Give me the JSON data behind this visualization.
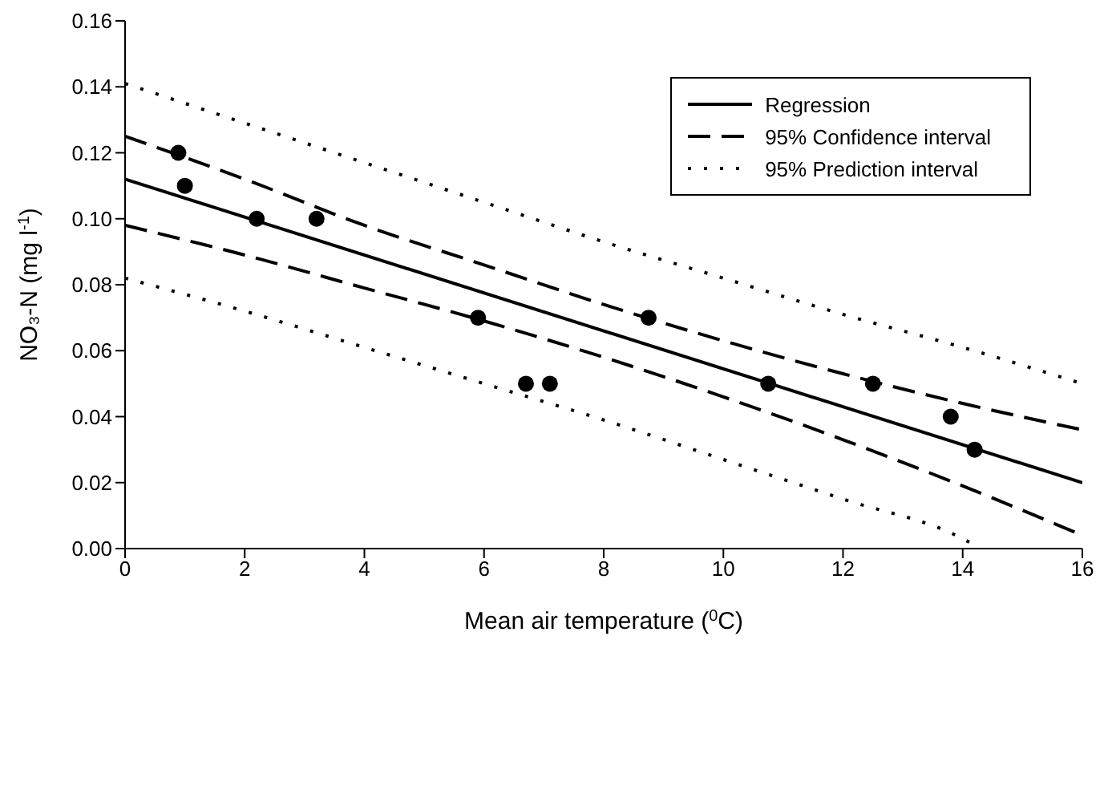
{
  "chart_data": {
    "type": "line",
    "xlabel": "Mean air temperature ($^{0}$C)",
    "ylabel": "NO₃-N (mg l$^{-1}$)",
    "xlim": [
      0,
      16
    ],
    "xticks": [
      0,
      2,
      4,
      6,
      8,
      10,
      12,
      14,
      16
    ],
    "ylim": [
      0,
      0.16
    ],
    "yticks": [
      {
        "value": 0,
        "label": "0.00"
      },
      {
        "value": 0.02,
        "label": "0.02"
      },
      {
        "value": 0.04,
        "label": "0.04"
      },
      {
        "value": 0.06,
        "label": "0.06"
      },
      {
        "value": 0.08,
        "label": "0.08"
      },
      {
        "value": 0.1,
        "label": "0.10"
      },
      {
        "value": 0.12,
        "label": "0.12"
      },
      {
        "value": 0.14,
        "label": "0.14"
      },
      {
        "value": 0.16,
        "label": "0.16"
      }
    ],
    "grid": false,
    "legend": "top right",
    "series": [
      {
        "type": "scatter",
        "color": "#000000",
        "marker": "circle",
        "x": [
          0.89,
          1.0,
          2.2,
          3.2,
          5.9,
          6.7,
          7.1,
          8.75,
          10.75,
          12.5,
          13.8,
          14.2
        ],
        "values": [
          0.12,
          0.11,
          0.1,
          0.1,
          0.07,
          0.05,
          0.05,
          0.07,
          0.05,
          0.05,
          0.04,
          0.03
        ]
      },
      {
        "name": "Regression",
        "color": "#000000",
        "line_style": "solid",
        "x": [
          0,
          16
        ],
        "values": [
          0.112,
          0.02
        ]
      },
      {
        "name": "95% Confidence interval",
        "color": "#000000",
        "line_style": "dashed",
        "x": [
          0,
          2,
          4,
          6,
          8,
          10,
          12,
          14,
          16
        ],
        "values": [
          0.125,
          0.112,
          0.098,
          0.086,
          0.074,
          0.063,
          0.053,
          0.044,
          0.036
        ]
      },
      {
        "color": "#000000",
        "line_style": "dashed",
        "x": [
          0,
          2,
          4,
          6,
          8,
          10,
          12,
          14,
          16
        ],
        "values": [
          0.098,
          0.089,
          0.079,
          0.069,
          0.058,
          0.046,
          0.033,
          0.019,
          0.004
        ]
      },
      {
        "name": "95% Prediction interval",
        "color": "#000000",
        "line_style": "dotted",
        "x": [
          0,
          2,
          4,
          6,
          8,
          10,
          12,
          14,
          16
        ],
        "values": [
          0.141,
          0.129,
          0.117,
          0.105,
          0.093,
          0.082,
          0.071,
          0.061,
          0.05
        ]
      },
      {
        "color": "#000000",
        "line_style": "dotted",
        "x": [
          0,
          2,
          4,
          6,
          8,
          10,
          12,
          14,
          14.3
        ],
        "values": [
          0.082,
          0.072,
          0.061,
          0.05,
          0.039,
          0.027,
          0.015,
          0.003,
          0
        ]
      }
    ]
  }
}
